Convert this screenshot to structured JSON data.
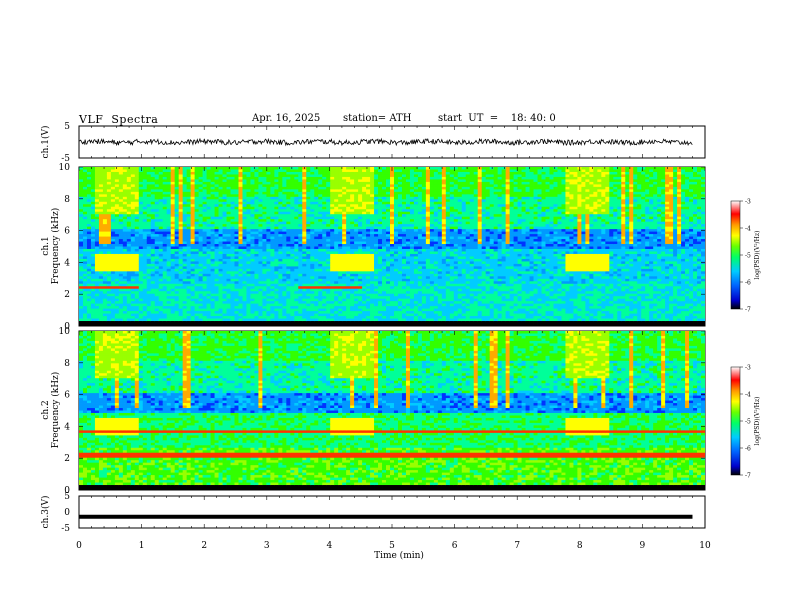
{
  "header": {
    "title": "VLF  Spectra",
    "date": "Apr. 16, 2025",
    "station": "station= ATH",
    "start_ut": "start  UT  =    18: 40: 0"
  },
  "chart_data": [
    {
      "type": "line",
      "ylabel": "ch.1(V)",
      "ylim": [
        -5,
        5
      ],
      "yticks": [
        "5",
        "-5"
      ],
      "xlim": [
        0,
        10
      ],
      "description_values": "noisy waveform around 0 V with amplitude about ±1 V from 0 to 9.8 min"
    },
    {
      "type": "heatmap",
      "ylabel": "ch.1\nFrequency (kHz)",
      "ylabel_lines": [
        "ch.1",
        "Frequency (kHz)"
      ],
      "ylim": [
        0,
        10
      ],
      "yticks": [
        "0",
        "2",
        "4",
        "6",
        "8",
        "10"
      ],
      "xlim": [
        0,
        10
      ],
      "colorbar": {
        "label": "log(PSD)(V²/Hz)",
        "range": [
          -7,
          -3
        ],
        "ticks": [
          "-3",
          "-4",
          "-5",
          "-6",
          "-7"
        ]
      }
    },
    {
      "type": "heatmap",
      "ylabel": "ch.2\nFrequency (kHz)",
      "ylabel_lines": [
        "ch.2",
        "Frequency (kHz)"
      ],
      "ylim": [
        0,
        10
      ],
      "yticks": [
        "0",
        "2",
        "4",
        "6",
        "8",
        "10"
      ],
      "xlim": [
        0,
        10
      ],
      "colorbar": {
        "label": "log(PSD)(V²/Hz)",
        "range": [
          -7,
          -3
        ],
        "ticks": [
          "-3",
          "-4",
          "-5",
          "-6",
          "-7"
        ]
      }
    },
    {
      "type": "line",
      "ylabel": "ch.3(V)",
      "ylim": [
        -5,
        5
      ],
      "yticks": [
        "5",
        "0",
        "-5"
      ],
      "xlim": [
        0,
        10
      ],
      "xlabel": "Time  (min)",
      "xticks": [
        "0",
        "1",
        "2",
        "3",
        "4",
        "5",
        "6",
        "7",
        "8",
        "9",
        "10"
      ],
      "constant_value": -1.5
    }
  ],
  "colormap": [
    "#000000",
    "#0000cc",
    "#0033ff",
    "#0099ff",
    "#00ccff",
    "#00ff99",
    "#33ff00",
    "#99ff00",
    "#ffff00",
    "#ffaa00",
    "#ff3300",
    "#cc0000",
    "#ffffff"
  ]
}
